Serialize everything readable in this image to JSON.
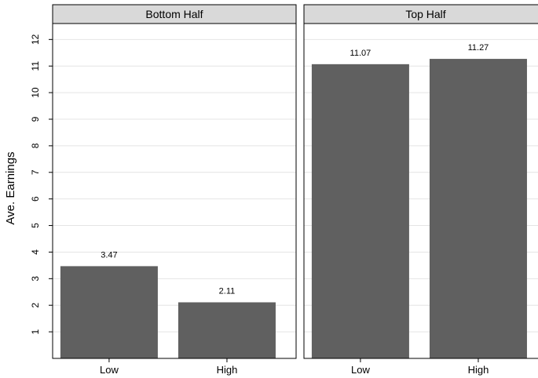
{
  "chart_data": {
    "type": "bar",
    "ylabel": "Ave. Earnings",
    "ylim": [
      0,
      12.6
    ],
    "yticks": [
      "1",
      "2",
      "3",
      "4",
      "5",
      "6",
      "7",
      "8",
      "9",
      "10",
      "11",
      "12"
    ],
    "categories": [
      "Low",
      "High"
    ],
    "bar_color": "#606060",
    "grid": true,
    "panels": [
      {
        "title": "Bottom Half",
        "values": [
          3.47,
          2.11
        ],
        "labels": [
          "3.47",
          "2.11"
        ]
      },
      {
        "title": "Top Half",
        "values": [
          11.07,
          11.27
        ],
        "labels": [
          "11.07",
          "11.27"
        ]
      }
    ]
  }
}
